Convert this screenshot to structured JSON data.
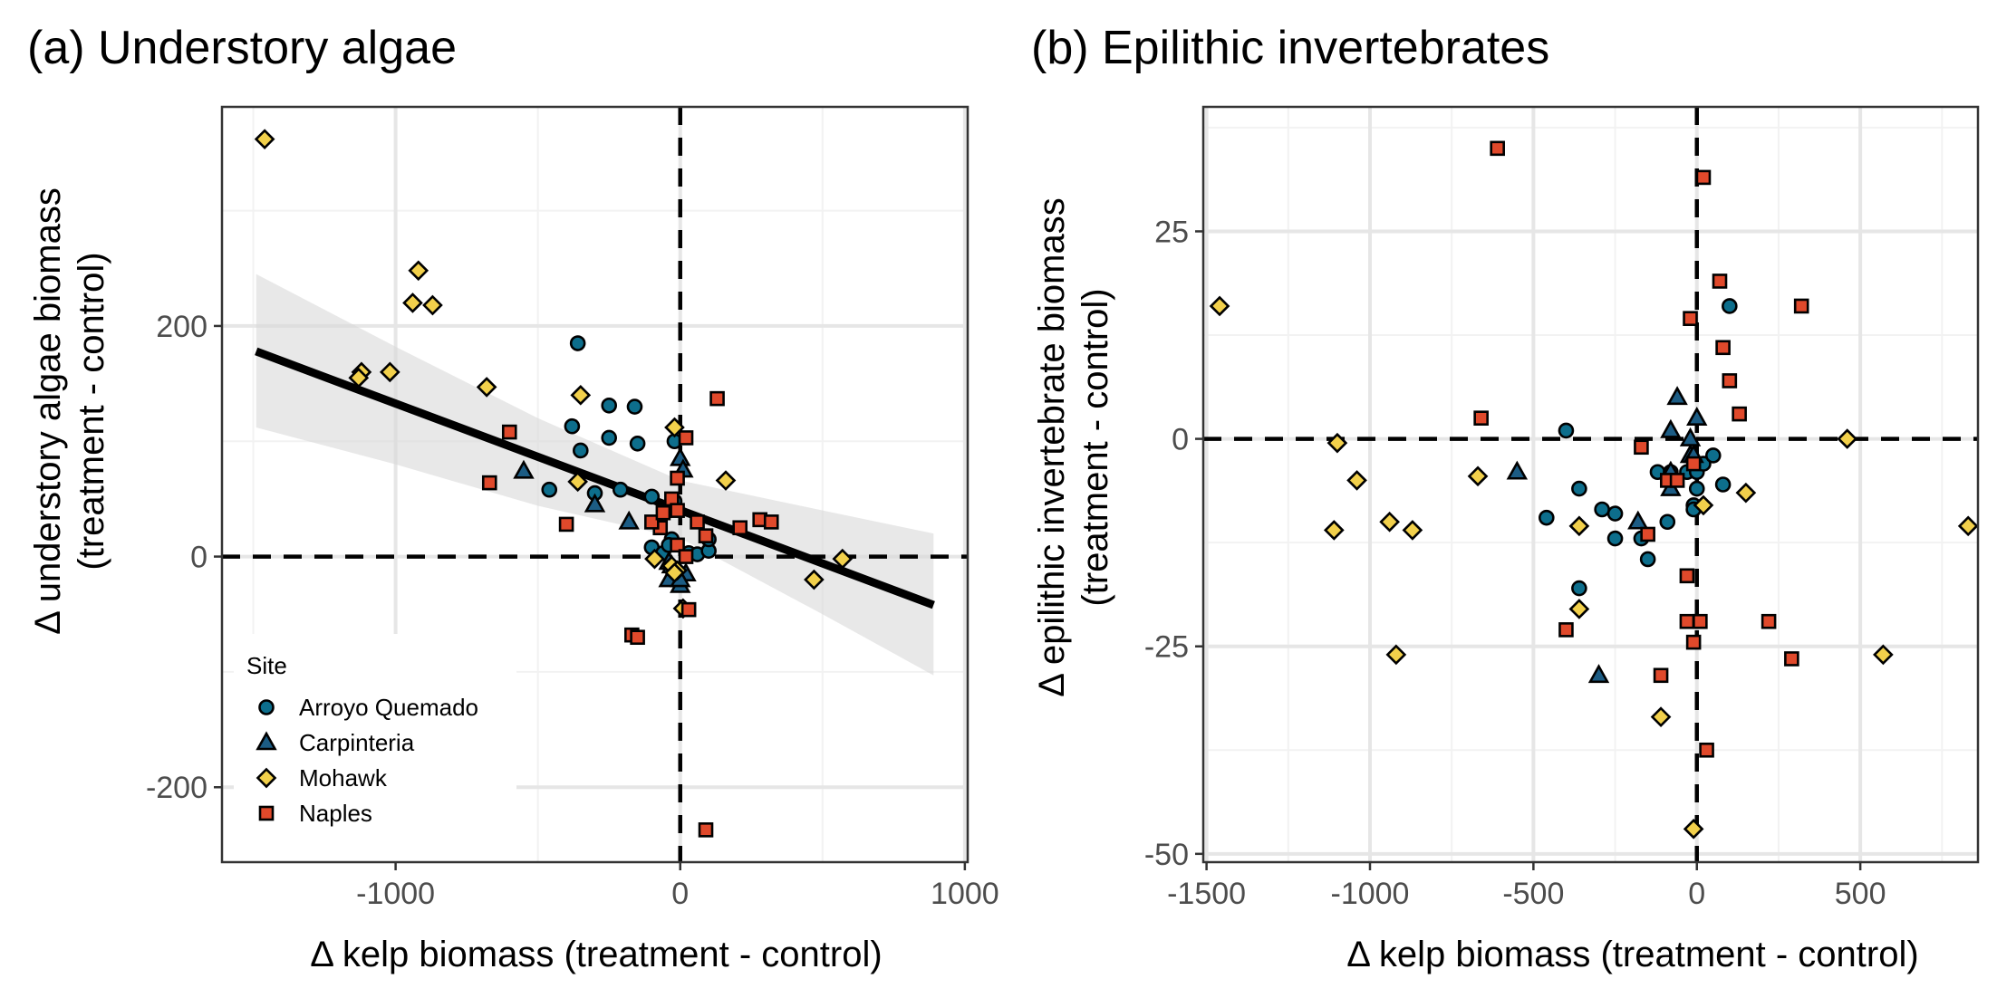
{
  "colors": {
    "Arroyo Quemado": "#0d6e8c",
    "Carpinteria": "#1c5c84",
    "Mohawk": "#f2d04b",
    "Naples": "#e0492b",
    "fit_line": "#000000",
    "ribbon": "#d9d9d9",
    "grid_major": "#e6e6e6",
    "grid_minor": "#f2f2f2"
  },
  "legend": {
    "title": "Site",
    "entries": [
      {
        "label": "Arroyo Quemado",
        "shape": "circle"
      },
      {
        "label": "Carpinteria",
        "shape": "triangle"
      },
      {
        "label": "Mohawk",
        "shape": "diamond"
      },
      {
        "label": "Naples",
        "shape": "square"
      }
    ]
  },
  "chart_data": [
    {
      "type": "scatter",
      "title": "(a) Understory algae",
      "xlabel": "Δ kelp biomass (treatment - control)",
      "ylabel_lines": [
        "Δ understory algae biomass",
        "(treatment - control)"
      ],
      "xlim": [
        -1610,
        1010
      ],
      "ylim": [
        -265,
        390
      ],
      "xticks": [
        -1000,
        0,
        1000
      ],
      "xtick_labels": [
        "-1000",
        "0",
        "1000"
      ],
      "yticks": [
        -200,
        0,
        200
      ],
      "ytick_labels": [
        "-200",
        "0",
        "200"
      ],
      "reference_lines": {
        "x": 0,
        "y": 0
      },
      "fit": {
        "x": [
          -1490,
          890
        ],
        "y": [
          178,
          -42
        ]
      },
      "ribbon": {
        "x": [
          -1490,
          -1000,
          -500,
          0,
          500,
          890
        ],
        "upper": [
          245,
          182,
          120,
          66,
          40,
          20
        ],
        "lower": [
          112,
          80,
          44,
          16,
          -50,
          -103
        ]
      },
      "series": [
        {
          "name": "Arroyo Quemado",
          "points": [
            [
              -360,
              185
            ],
            [
              -380,
              113
            ],
            [
              -350,
              92
            ],
            [
              -250,
              131
            ],
            [
              -250,
              103
            ],
            [
              -160,
              130
            ],
            [
              -150,
              98
            ],
            [
              -210,
              58
            ],
            [
              -460,
              58
            ],
            [
              -300,
              55
            ],
            [
              -100,
              52
            ],
            [
              -20,
              100
            ],
            [
              -20,
              48
            ],
            [
              -40,
              40
            ],
            [
              -100,
              8
            ],
            [
              -60,
              3
            ],
            [
              -30,
              15
            ],
            [
              -40,
              10
            ],
            [
              30,
              3
            ],
            [
              60,
              2
            ],
            [
              100,
              5
            ],
            [
              100,
              15
            ]
          ]
        },
        {
          "name": "Carpinteria",
          "points": [
            [
              -550,
              74
            ],
            [
              -300,
              45
            ],
            [
              -180,
              30
            ],
            [
              0,
              85
            ],
            [
              10,
              75
            ],
            [
              -40,
              -5
            ],
            [
              -30,
              -8
            ],
            [
              -20,
              -12
            ],
            [
              -40,
              -20
            ],
            [
              0,
              -25
            ],
            [
              20,
              -15
            ],
            [
              0,
              -20
            ]
          ]
        },
        {
          "name": "Mohawk",
          "points": [
            [
              -1460,
              362
            ],
            [
              -920,
              248
            ],
            [
              -940,
              220
            ],
            [
              -870,
              218
            ],
            [
              -1120,
              160
            ],
            [
              -1020,
              160
            ],
            [
              -1130,
              155
            ],
            [
              -680,
              147
            ],
            [
              -350,
              140
            ],
            [
              -360,
              65
            ],
            [
              -20,
              112
            ],
            [
              160,
              66
            ],
            [
              -90,
              -2
            ],
            [
              -30,
              -8
            ],
            [
              -10,
              -12
            ],
            [
              -20,
              -14
            ],
            [
              10,
              -45
            ],
            [
              470,
              -20
            ],
            [
              570,
              -2
            ]
          ]
        },
        {
          "name": "Naples",
          "points": [
            [
              -600,
              108
            ],
            [
              -670,
              64
            ],
            [
              -400,
              28
            ],
            [
              -70,
              25
            ],
            [
              -100,
              30
            ],
            [
              -30,
              50
            ],
            [
              -60,
              38
            ],
            [
              -10,
              40
            ],
            [
              -10,
              68
            ],
            [
              20,
              103
            ],
            [
              130,
              137
            ],
            [
              90,
              18
            ],
            [
              60,
              30
            ],
            [
              210,
              25
            ],
            [
              280,
              32
            ],
            [
              320,
              30
            ],
            [
              -10,
              10
            ],
            [
              20,
              0
            ],
            [
              -170,
              -68
            ],
            [
              -150,
              -70
            ],
            [
              30,
              -46
            ],
            [
              90,
              -237
            ]
          ]
        }
      ]
    },
    {
      "type": "scatter",
      "title": "(b) Epilithic invertebrates",
      "xlabel": "Δ kelp biomass (treatment - control)",
      "ylabel_lines": [
        "Δ epilithic invertebrate biomass",
        "(treatment - control)"
      ],
      "xlim": [
        -1510,
        860
      ],
      "ylim": [
        -51,
        40
      ],
      "xticks": [
        -1500,
        -1000,
        -500,
        0,
        500
      ],
      "xtick_labels": [
        "-1500",
        "-1000",
        "-500",
        "0",
        "500"
      ],
      "yticks": [
        -50,
        -25,
        0,
        25
      ],
      "ytick_labels": [
        "-50",
        "-25",
        "0",
        "25"
      ],
      "reference_lines": {
        "x": 0,
        "y": 0
      },
      "series": [
        {
          "name": "Arroyo Quemado",
          "points": [
            [
              -400,
              1
            ],
            [
              -360,
              -6
            ],
            [
              -460,
              -9.5
            ],
            [
              -290,
              -8.5
            ],
            [
              -250,
              -9
            ],
            [
              -250,
              -12
            ],
            [
              -170,
              -12
            ],
            [
              -150,
              -14.5
            ],
            [
              -120,
              -4
            ],
            [
              -90,
              -10
            ],
            [
              -80,
              -4
            ],
            [
              -30,
              -4
            ],
            [
              -10,
              -8
            ],
            [
              -10,
              -8.5
            ],
            [
              0,
              -6
            ],
            [
              0,
              -4
            ],
            [
              20,
              -3
            ],
            [
              50,
              -2
            ],
            [
              80,
              -5.5
            ],
            [
              100,
              16
            ],
            [
              -360,
              -18
            ]
          ]
        },
        {
          "name": "Carpinteria",
          "points": [
            [
              -550,
              -4
            ],
            [
              -300,
              -28.5
            ],
            [
              -180,
              -10
            ],
            [
              -60,
              5
            ],
            [
              -80,
              1
            ],
            [
              0,
              2.5
            ],
            [
              -20,
              -2
            ],
            [
              -80,
              -4
            ],
            [
              -80,
              -6
            ],
            [
              -10,
              -2
            ],
            [
              -20,
              0
            ]
          ]
        },
        {
          "name": "Mohawk",
          "points": [
            [
              -1460,
              16
            ],
            [
              -1100,
              -0.5
            ],
            [
              -1040,
              -5
            ],
            [
              -1110,
              -11
            ],
            [
              -940,
              -10
            ],
            [
              -870,
              -11
            ],
            [
              -920,
              -26
            ],
            [
              -670,
              -4.5
            ],
            [
              -360,
              -10.5
            ],
            [
              -360,
              -20.5
            ],
            [
              -110,
              -33.5
            ],
            [
              -10,
              -47
            ],
            [
              20,
              -8
            ],
            [
              150,
              -6.5
            ],
            [
              460,
              0
            ],
            [
              570,
              -26
            ],
            [
              830,
              -10.5
            ]
          ]
        },
        {
          "name": "Naples",
          "points": [
            [
              -610,
              35
            ],
            [
              -660,
              2.5
            ],
            [
              -400,
              -23
            ],
            [
              -170,
              -1
            ],
            [
              -150,
              -11.5
            ],
            [
              -110,
              -28.5
            ],
            [
              -90,
              -5
            ],
            [
              -60,
              -5
            ],
            [
              -30,
              -16.5
            ],
            [
              -30,
              -22
            ],
            [
              -10,
              -24.5
            ],
            [
              10,
              -22
            ],
            [
              -10,
              -3
            ],
            [
              -20,
              14.5
            ],
            [
              20,
              31.5
            ],
            [
              30,
              -37.5
            ],
            [
              70,
              19
            ],
            [
              80,
              11
            ],
            [
              100,
              7
            ],
            [
              130,
              3
            ],
            [
              220,
              -22
            ],
            [
              290,
              -26.5
            ],
            [
              320,
              16
            ]
          ]
        }
      ]
    }
  ]
}
